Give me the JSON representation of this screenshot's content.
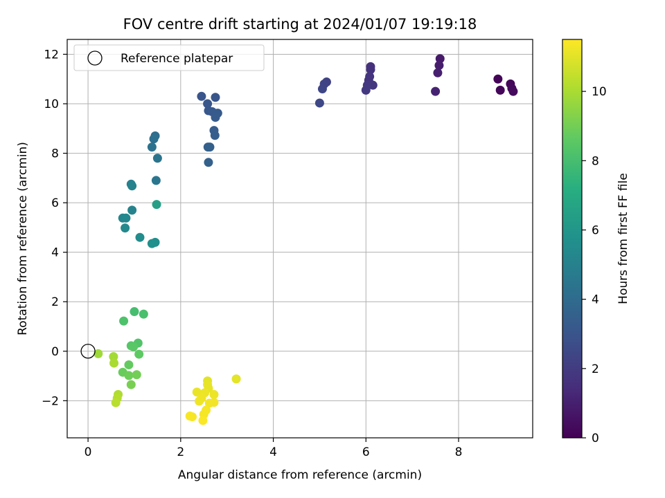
{
  "chart_data": {
    "type": "scatter",
    "title": "FOV centre drift starting at 2024/01/07 19:19:18",
    "xlabel": "Angular distance from reference (arcmin)",
    "ylabel": "Rotation from reference (arcmin)",
    "xlim": [
      -0.45,
      9.6
    ],
    "ylim": [
      -3.5,
      12.6
    ],
    "xticks": [
      0,
      2,
      4,
      6,
      8
    ],
    "yticks": [
      -2,
      0,
      2,
      4,
      6,
      8,
      10,
      12
    ],
    "grid": true,
    "legend": {
      "placement": "top-left",
      "entries": [
        {
          "label": "Reference platepar",
          "marker": "open-circle",
          "x": 0,
          "y": 0
        }
      ]
    },
    "colorbar": {
      "label": "Hours from first FF file",
      "colormap": "viridis",
      "range": [
        0,
        11.5
      ],
      "ticks": [
        0,
        2,
        4,
        6,
        8,
        10
      ]
    },
    "points": [
      {
        "x": 8.85,
        "y": 11.0,
        "h": 0.1
      },
      {
        "x": 8.9,
        "y": 10.55,
        "h": 0.15
      },
      {
        "x": 9.12,
        "y": 10.8,
        "h": 0.2
      },
      {
        "x": 9.15,
        "y": 10.62,
        "h": 0.25
      },
      {
        "x": 9.18,
        "y": 10.5,
        "h": 0.3
      },
      {
        "x": 7.6,
        "y": 11.82,
        "h": 0.8
      },
      {
        "x": 7.58,
        "y": 11.55,
        "h": 0.9
      },
      {
        "x": 7.55,
        "y": 11.25,
        "h": 1.0
      },
      {
        "x": 7.5,
        "y": 10.5,
        "h": 1.1
      },
      {
        "x": 6.1,
        "y": 11.5,
        "h": 1.6
      },
      {
        "x": 6.1,
        "y": 11.38,
        "h": 1.65
      },
      {
        "x": 6.08,
        "y": 11.1,
        "h": 1.7
      },
      {
        "x": 6.06,
        "y": 10.95,
        "h": 1.75
      },
      {
        "x": 6.15,
        "y": 10.75,
        "h": 1.8
      },
      {
        "x": 6.03,
        "y": 10.75,
        "h": 1.85
      },
      {
        "x": 6.0,
        "y": 10.55,
        "h": 1.9
      },
      {
        "x": 5.15,
        "y": 10.88,
        "h": 2.2
      },
      {
        "x": 5.1,
        "y": 10.8,
        "h": 2.3
      },
      {
        "x": 5.06,
        "y": 10.6,
        "h": 2.4
      },
      {
        "x": 5.0,
        "y": 10.03,
        "h": 2.5
      },
      {
        "x": 2.45,
        "y": 10.3,
        "h": 3.0
      },
      {
        "x": 2.75,
        "y": 10.26,
        "h": 3.05
      },
      {
        "x": 2.58,
        "y": 10.0,
        "h": 3.1
      },
      {
        "x": 2.6,
        "y": 9.72,
        "h": 3.15
      },
      {
        "x": 2.68,
        "y": 9.68,
        "h": 3.2
      },
      {
        "x": 2.8,
        "y": 9.62,
        "h": 3.25
      },
      {
        "x": 2.75,
        "y": 9.45,
        "h": 3.3
      },
      {
        "x": 2.72,
        "y": 8.92,
        "h": 3.35
      },
      {
        "x": 2.74,
        "y": 8.72,
        "h": 3.4
      },
      {
        "x": 2.63,
        "y": 8.25,
        "h": 3.45
      },
      {
        "x": 2.59,
        "y": 8.25,
        "h": 3.5
      },
      {
        "x": 2.6,
        "y": 7.63,
        "h": 3.55
      },
      {
        "x": 1.45,
        "y": 8.7,
        "h": 4.1
      },
      {
        "x": 1.42,
        "y": 8.58,
        "h": 4.2
      },
      {
        "x": 1.38,
        "y": 8.25,
        "h": 4.3
      },
      {
        "x": 1.5,
        "y": 7.8,
        "h": 4.4
      },
      {
        "x": 1.47,
        "y": 6.9,
        "h": 4.5
      },
      {
        "x": 0.93,
        "y": 6.75,
        "h": 5.0
      },
      {
        "x": 0.95,
        "y": 6.68,
        "h": 5.05
      },
      {
        "x": 0.95,
        "y": 5.7,
        "h": 5.1
      },
      {
        "x": 0.75,
        "y": 5.38,
        "h": 5.2
      },
      {
        "x": 0.82,
        "y": 5.38,
        "h": 5.3
      },
      {
        "x": 0.8,
        "y": 4.98,
        "h": 5.4
      },
      {
        "x": 1.12,
        "y": 4.6,
        "h": 5.5
      },
      {
        "x": 1.45,
        "y": 4.4,
        "h": 5.6
      },
      {
        "x": 1.38,
        "y": 4.35,
        "h": 5.7
      },
      {
        "x": 1.48,
        "y": 5.93,
        "h": 6.5
      },
      {
        "x": 1.0,
        "y": 1.6,
        "h": 8.0
      },
      {
        "x": 1.2,
        "y": 1.5,
        "h": 8.1
      },
      {
        "x": 0.77,
        "y": 1.22,
        "h": 8.2
      },
      {
        "x": 1.08,
        "y": 0.33,
        "h": 8.3
      },
      {
        "x": 0.93,
        "y": 0.22,
        "h": 8.4
      },
      {
        "x": 0.98,
        "y": 0.18,
        "h": 8.5
      },
      {
        "x": 1.1,
        "y": -0.12,
        "h": 8.6
      },
      {
        "x": 0.88,
        "y": -0.55,
        "h": 8.7
      },
      {
        "x": 0.75,
        "y": -0.85,
        "h": 8.8
      },
      {
        "x": 0.88,
        "y": -0.98,
        "h": 8.9
      },
      {
        "x": 1.05,
        "y": -0.95,
        "h": 9.0
      },
      {
        "x": 0.93,
        "y": -1.35,
        "h": 9.1
      },
      {
        "x": 0.22,
        "y": -0.1,
        "h": 9.8
      },
      {
        "x": 0.55,
        "y": -0.22,
        "h": 9.9
      },
      {
        "x": 0.56,
        "y": -0.48,
        "h": 10.0
      },
      {
        "x": 0.65,
        "y": -1.75,
        "h": 10.1
      },
      {
        "x": 0.63,
        "y": -1.9,
        "h": 10.2
      },
      {
        "x": 0.6,
        "y": -2.08,
        "h": 10.3
      },
      {
        "x": 2.58,
        "y": -1.2,
        "h": 11.0
      },
      {
        "x": 3.2,
        "y": -1.12,
        "h": 11.05
      },
      {
        "x": 2.58,
        "y": -1.35,
        "h": 11.1
      },
      {
        "x": 2.6,
        "y": -1.5,
        "h": 11.1
      },
      {
        "x": 2.35,
        "y": -1.65,
        "h": 11.15
      },
      {
        "x": 2.52,
        "y": -1.68,
        "h": 11.2
      },
      {
        "x": 2.72,
        "y": -1.75,
        "h": 11.2
      },
      {
        "x": 2.45,
        "y": -1.9,
        "h": 11.25
      },
      {
        "x": 2.4,
        "y": -2.02,
        "h": 11.25
      },
      {
        "x": 2.72,
        "y": -2.07,
        "h": 11.3
      },
      {
        "x": 2.62,
        "y": -2.1,
        "h": 11.3
      },
      {
        "x": 2.55,
        "y": -2.38,
        "h": 11.35
      },
      {
        "x": 2.5,
        "y": -2.55,
        "h": 11.35
      },
      {
        "x": 2.2,
        "y": -2.62,
        "h": 11.4
      },
      {
        "x": 2.25,
        "y": -2.65,
        "h": 11.4
      },
      {
        "x": 2.48,
        "y": -2.8,
        "h": 11.45
      }
    ]
  }
}
